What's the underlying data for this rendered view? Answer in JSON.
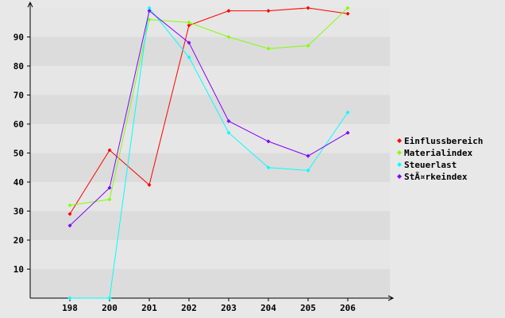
{
  "chart_data": {
    "type": "line",
    "title": "",
    "xlabel": "",
    "ylabel": "",
    "categories": [
      "198",
      "200",
      "201",
      "202",
      "203",
      "204",
      "205",
      "206"
    ],
    "ylim": [
      0,
      100
    ],
    "yticks": [
      10,
      20,
      30,
      40,
      50,
      60,
      70,
      80,
      90
    ],
    "grid": "alternating horizontal bands",
    "legend_position": "right",
    "series": [
      {
        "name": "Einflussbereich",
        "color": "#ff0000",
        "values": [
          29,
          51,
          39,
          94,
          99,
          99,
          100,
          98
        ]
      },
      {
        "name": "Materialindex",
        "color": "#80ff00",
        "values": [
          32,
          34,
          96,
          95,
          90,
          86,
          87,
          100
        ]
      },
      {
        "name": "Steuerlast",
        "color": "#00ffff",
        "values": [
          0,
          0,
          100,
          83,
          57,
          45,
          44,
          64
        ]
      },
      {
        "name": "StÃ¤rkeindex",
        "color": "#8000ff",
        "values": [
          25,
          38,
          99,
          88,
          61,
          54,
          49,
          57
        ]
      }
    ]
  }
}
